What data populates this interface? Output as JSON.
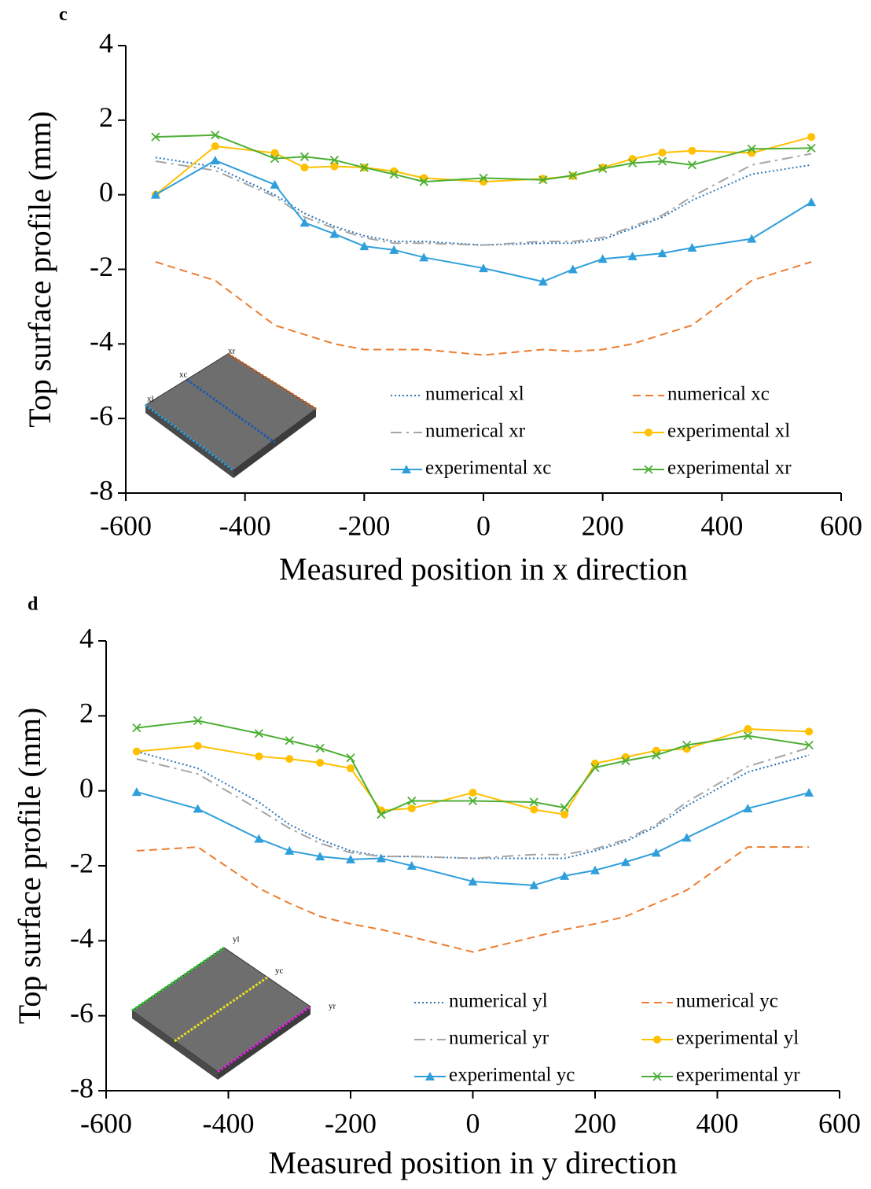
{
  "chart_data": [
    {
      "type": "line",
      "panel": "c",
      "xlabel": "Measured position in x direction",
      "ylabel": "Top surface profile (mm)",
      "xlim": [
        -600,
        600
      ],
      "xticks": [
        -600,
        -400,
        -200,
        0,
        200,
        400,
        600
      ],
      "ylim": [
        -8,
        4
      ],
      "yticks": [
        -8,
        -6,
        -4,
        -2,
        0,
        2,
        4
      ],
      "legend": "lower right",
      "inset_labels": [
        "xl",
        "xc",
        "xr"
      ],
      "x": [
        -550,
        -450,
        -350,
        -300,
        -250,
        -200,
        -150,
        -100,
        0,
        100,
        150,
        200,
        250,
        300,
        350,
        450,
        550
      ],
      "series": [
        {
          "name": "numerical xl",
          "color": "#2e75b6",
          "linestyle": "dotted",
          "marker": "none",
          "values": [
            1.0,
            0.75,
            0.0,
            -0.5,
            -0.85,
            -1.1,
            -1.25,
            -1.25,
            -1.35,
            -1.3,
            -1.3,
            -1.2,
            -0.9,
            -0.6,
            -0.15,
            0.55,
            0.8
          ]
        },
        {
          "name": "numerical xc",
          "color": "#ed7d31",
          "linestyle": "dashed",
          "marker": "none",
          "values": [
            -1.8,
            -2.3,
            -3.5,
            -3.75,
            -4.0,
            -4.15,
            -4.15,
            -4.15,
            -4.3,
            -4.15,
            -4.2,
            -4.15,
            -4.0,
            -3.75,
            -3.5,
            -2.3,
            -1.8
          ]
        },
        {
          "name": "numerical xr",
          "color": "#a5a5a5",
          "linestyle": "dashdot",
          "marker": "none",
          "values": [
            0.9,
            0.65,
            -0.05,
            -0.6,
            -0.9,
            -1.15,
            -1.3,
            -1.3,
            -1.35,
            -1.25,
            -1.25,
            -1.15,
            -0.85,
            -0.55,
            -0.05,
            0.8,
            1.1
          ]
        },
        {
          "name": "experimental xl",
          "color": "#ffc000",
          "linestyle": "solid",
          "marker": "circle",
          "values": [
            0.0,
            1.3,
            1.12,
            0.73,
            0.76,
            0.73,
            0.63,
            0.45,
            0.35,
            0.43,
            0.5,
            0.73,
            0.96,
            1.13,
            1.18,
            1.12,
            1.55
          ]
        },
        {
          "name": "experimental xc",
          "color": "#2f9fdb",
          "linestyle": "solid",
          "marker": "triangle",
          "values": [
            0.0,
            0.92,
            0.27,
            -0.75,
            -1.05,
            -1.38,
            -1.48,
            -1.68,
            -1.97,
            -2.33,
            -2.0,
            -1.72,
            -1.65,
            -1.57,
            -1.42,
            -1.18,
            -0.2
          ]
        },
        {
          "name": "experimental xr",
          "color": "#4caf35",
          "linestyle": "solid",
          "marker": "x",
          "values": [
            1.55,
            1.6,
            0.97,
            1.02,
            0.93,
            0.73,
            0.55,
            0.35,
            0.45,
            0.4,
            0.52,
            0.7,
            0.85,
            0.9,
            0.8,
            1.23,
            1.25
          ]
        }
      ]
    },
    {
      "type": "line",
      "panel": "d",
      "xlabel": "Measured position in y direction",
      "ylabel": "Top surface profile (mm)",
      "xlim": [
        -600,
        600
      ],
      "xticks": [
        -600,
        -400,
        -200,
        0,
        200,
        400,
        600
      ],
      "ylim": [
        -8,
        4
      ],
      "yticks": [
        -8,
        -6,
        -4,
        -2,
        0,
        2,
        4
      ],
      "legend": "lower right",
      "inset_labels": [
        "yl",
        "yc",
        "yr"
      ],
      "x": [
        -550,
        -450,
        -350,
        -300,
        -250,
        -200,
        -150,
        -100,
        0,
        100,
        150,
        200,
        250,
        300,
        350,
        450,
        550
      ],
      "series": [
        {
          "name": "numerical yl",
          "color": "#2e75b6",
          "linestyle": "dotted",
          "marker": "none",
          "values": [
            1.05,
            0.6,
            -0.3,
            -0.9,
            -1.3,
            -1.6,
            -1.75,
            -1.75,
            -1.8,
            -1.8,
            -1.8,
            -1.6,
            -1.35,
            -0.95,
            -0.4,
            0.5,
            0.95
          ]
        },
        {
          "name": "numerical yc",
          "color": "#ed7d31",
          "linestyle": "dashed",
          "marker": "none",
          "values": [
            -1.6,
            -1.5,
            -2.6,
            -3.0,
            -3.35,
            -3.55,
            -3.7,
            -3.9,
            -4.3,
            -3.9,
            -3.7,
            -3.55,
            -3.35,
            -3.0,
            -2.65,
            -1.5,
            -1.5
          ]
        },
        {
          "name": "numerical yr",
          "color": "#a5a5a5",
          "linestyle": "dashdot",
          "marker": "none",
          "values": [
            0.85,
            0.45,
            -0.5,
            -1.0,
            -1.4,
            -1.65,
            -1.75,
            -1.75,
            -1.8,
            -1.7,
            -1.7,
            -1.55,
            -1.3,
            -0.9,
            -0.3,
            0.65,
            1.15
          ]
        },
        {
          "name": "experimental yl",
          "color": "#ffc000",
          "linestyle": "solid",
          "marker": "circle",
          "values": [
            1.05,
            1.2,
            0.92,
            0.85,
            0.75,
            0.6,
            -0.52,
            -0.47,
            -0.05,
            -0.5,
            -0.63,
            0.73,
            0.9,
            1.07,
            1.12,
            1.65,
            1.58
          ]
        },
        {
          "name": "experimental yc",
          "color": "#2f9fdb",
          "linestyle": "solid",
          "marker": "triangle",
          "values": [
            -0.03,
            -0.48,
            -1.28,
            -1.6,
            -1.75,
            -1.83,
            -1.8,
            -2.0,
            -2.42,
            -2.52,
            -2.27,
            -2.12,
            -1.9,
            -1.65,
            -1.25,
            -0.47,
            -0.05
          ]
        },
        {
          "name": "experimental yr",
          "color": "#4caf35",
          "linestyle": "solid",
          "marker": "x",
          "values": [
            1.68,
            1.87,
            1.53,
            1.34,
            1.14,
            0.88,
            -0.63,
            -0.27,
            -0.27,
            -0.3,
            -0.45,
            0.62,
            0.8,
            0.95,
            1.22,
            1.47,
            1.22
          ]
        }
      ]
    }
  ]
}
